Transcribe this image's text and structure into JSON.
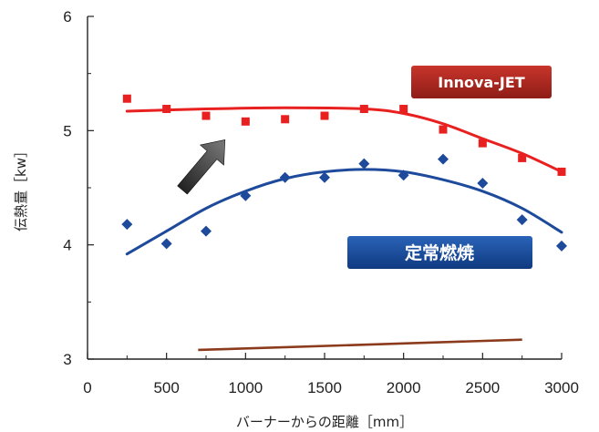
{
  "chart_data": {
    "type": "scatter",
    "title": "",
    "xlabel": "バーナーからの距離［mm］",
    "ylabel": "伝熱量［kw］",
    "xlim": [
      0,
      3000
    ],
    "ylim": [
      3,
      6
    ],
    "x_ticks": [
      "0",
      "500",
      "1000",
      "1500",
      "2000",
      "2500",
      "3000"
    ],
    "y_ticks": [
      "3",
      "4",
      "5",
      "6"
    ],
    "grid": false,
    "series": [
      {
        "name": "Innova-JET",
        "marker": "square",
        "color": "#e8201f",
        "x": [
          250,
          500,
          750,
          1000,
          1250,
          1500,
          1750,
          2000,
          2250,
          2500,
          2750,
          3000
        ],
        "y": [
          5.28,
          5.19,
          5.13,
          5.08,
          5.1,
          5.13,
          5.19,
          5.19,
          5.01,
          4.89,
          4.76,
          4.64
        ],
        "trend_x": [
          250,
          750,
          1250,
          1750,
          2000,
          2250,
          2500,
          2750,
          3000
        ],
        "trend_y": [
          5.17,
          5.19,
          5.2,
          5.19,
          5.15,
          5.06,
          4.93,
          4.8,
          4.64
        ]
      },
      {
        "name": "定常燃焼",
        "marker": "diamond",
        "color": "#1e4a9c",
        "x": [
          250,
          500,
          750,
          1000,
          1250,
          1500,
          1750,
          2000,
          2250,
          2500,
          2750,
          3000
        ],
        "y": [
          4.18,
          4.01,
          4.12,
          4.43,
          4.59,
          4.59,
          4.71,
          4.61,
          4.75,
          4.54,
          4.22,
          3.99
        ],
        "trend_x": [
          250,
          500,
          750,
          1000,
          1250,
          1500,
          1750,
          2000,
          2250,
          2500,
          2750,
          3000
        ],
        "trend_y": [
          3.92,
          4.12,
          4.32,
          4.47,
          4.58,
          4.64,
          4.66,
          4.64,
          4.57,
          4.47,
          4.32,
          4.11
        ]
      }
    ],
    "annotations": {
      "bottom_line_x": [
        700,
        2750
      ],
      "bottom_line_y": [
        3.08,
        3.17
      ],
      "bottom_line_color": "#8c3a1c",
      "arrow_from": [
        600,
        4.48
      ],
      "arrow_to": [
        870,
        4.92
      ]
    },
    "legend": {
      "innova": {
        "label": "Innova-JET",
        "bg": "#b82a22",
        "placement": "upper-right"
      },
      "steady": {
        "label": "定常燃焼",
        "bg": "#1a4f9e",
        "placement": "center-right"
      }
    }
  }
}
